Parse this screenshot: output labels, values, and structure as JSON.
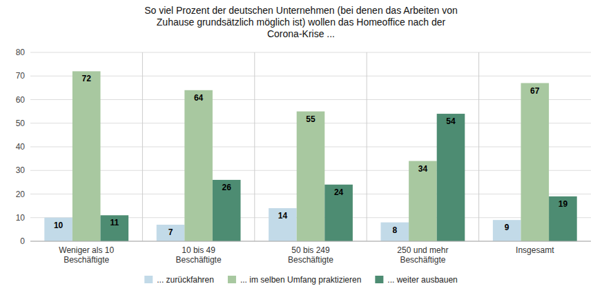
{
  "chart_data": {
    "type": "bar",
    "title": "So viel Prozent der deutschen Unternehmen (bei denen das Arbeiten von\nZuhause grundsätzlich möglich ist) wollen das Homeoffice nach der\nCorona-Krise ...",
    "categories": [
      "Weniger als 10\nBeschäftigte",
      "10 bis 49\nBeschäftigte",
      "50 bis 249\nBeschäftigte",
      "250 und mehr\nBeschäftigte",
      "Insgesamt"
    ],
    "series": [
      {
        "name": "... zurückfahren",
        "values": [
          10,
          7,
          14,
          8,
          9
        ],
        "color": "#c2dae8"
      },
      {
        "name": "... im selben Umfang praktizieren",
        "values": [
          72,
          64,
          55,
          34,
          67
        ],
        "color": "#a8c8a0"
      },
      {
        "name": "... weiter ausbauen",
        "values": [
          11,
          26,
          24,
          54,
          19
        ],
        "color": "#4d8c72"
      }
    ],
    "ylim": [
      0,
      80
    ],
    "yticks": [
      0,
      10,
      20,
      30,
      40,
      50,
      60,
      70,
      80
    ],
    "grid": true,
    "data_labels": true,
    "legend": "bottom"
  }
}
